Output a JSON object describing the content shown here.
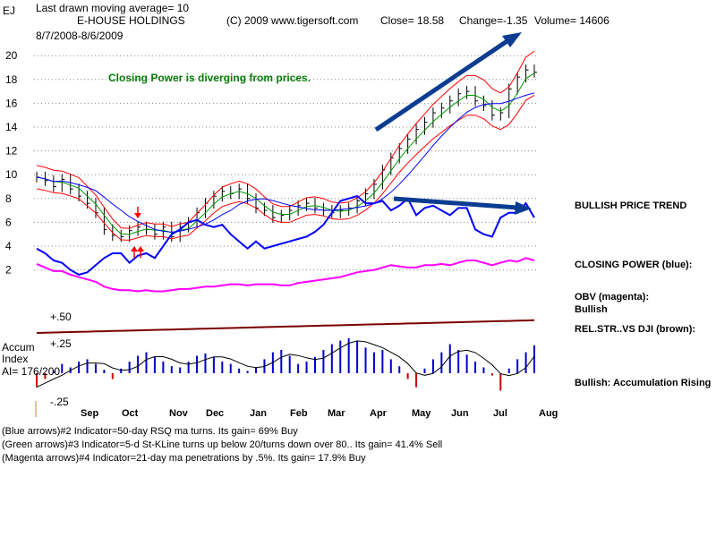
{
  "header": {
    "symbol": "EJ",
    "last_ma": "Last drawn moving average= 10",
    "name": "E-HOUSE HOLDINGS",
    "copyright": "(C) 2009 www.tigersoft.com",
    "close": "Close=  18.58",
    "change": "Change=-1.35",
    "volume": "Volume= 14606",
    "date_range": "8/7/2008-8/6/2009"
  },
  "annotation": "Closing Power is diverging from prices.",
  "right_labels": {
    "trend": "BULLISH PRICE TREND",
    "closing_power": "CLOSING POWER (blue):",
    "obv": "OBV (magenta):",
    "obv_status": "Bullish",
    "relstr": "REL.STR..VS DJI (brown):",
    "accum": "Bullish: Accumulation Rising"
  },
  "accum_labels": {
    "title1": "Accum",
    "title2": "Index",
    "ai": "AI= 176/200",
    "plus50": "+.50",
    "plus25": "+.25",
    "minus25": "-.25"
  },
  "footer": [
    "(Blue arrows)#2 Indicator=50-day RSQ ma turns. Its gain= 69% Buy",
    "(Green arrows)#3 Indicator=5-d St-KLine turns up below 20/turns down over 80.. Its gain= 41.4% Sell",
    "(Magenta arrows)#4 Indicator=21-day ma penetrations by .5%. Its gain= 17.9% Buy"
  ],
  "colors": {
    "price": "#000000",
    "ma_short": "#009900",
    "ma_long": "#0000ff",
    "band": "#ff0000",
    "closing_power": "#0000ff",
    "obv": "#ff00ff",
    "relstr": "#7a0000",
    "accum_pos": "#0000cc",
    "accum_neg": "#cc0000",
    "trend_arrow": "#0a3d91",
    "note": "#0a7a0a"
  },
  "chart_data": {
    "type": "line",
    "x_ticks": [
      "Sep",
      "Oct",
      "Nov",
      "Dec",
      "Jan",
      "Feb",
      "Mar",
      "Apr",
      "May",
      "Jun",
      "Jul",
      "Aug"
    ],
    "y_ticks": [
      2,
      4,
      6,
      8,
      10,
      12,
      14,
      16,
      18,
      20
    ],
    "ylim": [
      2,
      21
    ],
    "grid": true,
    "price_close": [
      9.8,
      9.5,
      9.0,
      9.6,
      8.8,
      8.2,
      7.6,
      6.8,
      5.4,
      4.9,
      4.8,
      5.3,
      5.6,
      5.4,
      5.0,
      5.6,
      4.8,
      5.6,
      6.0,
      6.8,
      7.6,
      8.2,
      8.6,
      8.4,
      8.8,
      8.0,
      7.2,
      7.0,
      6.4,
      6.6,
      7.0,
      7.4,
      7.6,
      7.2,
      7.0,
      6.8,
      7.0,
      7.2,
      7.8,
      8.4,
      9.2,
      10.4,
      11.4,
      12.2,
      13.0,
      13.8,
      14.4,
      15.2,
      15.6,
      16.2,
      16.8,
      17.0,
      16.2,
      15.8,
      15.0,
      15.2,
      17.2,
      18.2,
      18.8,
      18.6
    ],
    "closing_power": [
      3.8,
      3.4,
      2.8,
      2.6,
      2.0,
      1.6,
      1.8,
      2.4,
      3.0,
      3.4,
      3.4,
      2.6,
      3.2,
      3.4,
      3.0,
      4.0,
      5.0,
      5.4,
      6.0,
      6.2,
      5.8,
      5.6,
      5.8,
      5.0,
      4.4,
      3.8,
      4.4,
      3.8,
      4.0,
      4.2,
      4.4,
      4.6,
      4.8,
      5.2,
      5.8,
      6.8,
      7.8,
      8.0,
      8.2,
      7.6,
      7.6,
      7.8,
      7.0,
      7.4,
      8.0,
      6.6,
      7.2,
      7.4,
      7.0,
      6.6,
      7.2,
      7.2,
      5.4,
      5.0,
      4.8,
      6.4,
      6.8,
      6.8,
      7.6,
      6.4
    ],
    "obv": [
      2.5,
      2.2,
      1.9,
      1.9,
      1.6,
      1.4,
      1.2,
      1.0,
      0.6,
      0.4,
      0.3,
      0.3,
      0.2,
      0.3,
      0.2,
      0.2,
      0.3,
      0.4,
      0.4,
      0.5,
      0.6,
      0.6,
      0.7,
      0.8,
      0.8,
      0.7,
      0.8,
      0.8,
      0.8,
      0.7,
      0.7,
      0.9,
      1.0,
      1.1,
      1.2,
      1.3,
      1.4,
      1.6,
      1.8,
      1.9,
      2.0,
      2.2,
      2.4,
      2.3,
      2.2,
      2.2,
      2.4,
      2.4,
      2.5,
      2.4,
      2.6,
      2.8,
      2.8,
      2.6,
      2.4,
      2.6,
      2.8,
      2.7,
      3.0,
      2.8
    ],
    "accum_index": [
      -0.12,
      -0.05,
      0.02,
      0.08,
      0.05,
      0.1,
      0.12,
      0.08,
      0.03,
      -0.05,
      0.04,
      0.1,
      0.15,
      0.18,
      0.14,
      0.1,
      0.06,
      0.05,
      0.1,
      0.15,
      0.17,
      0.14,
      0.1,
      0.08,
      0.04,
      0.02,
      0.05,
      0.12,
      0.18,
      0.2,
      0.15,
      0.08,
      0.1,
      0.14,
      0.2,
      0.25,
      0.28,
      0.3,
      0.28,
      0.22,
      0.18,
      0.2,
      0.12,
      0.06,
      -0.05,
      -0.12,
      0.04,
      0.12,
      0.18,
      0.25,
      0.2,
      0.16,
      0.1,
      0.05,
      -0.02,
      -0.15,
      0.04,
      0.12,
      0.18,
      0.24
    ]
  }
}
